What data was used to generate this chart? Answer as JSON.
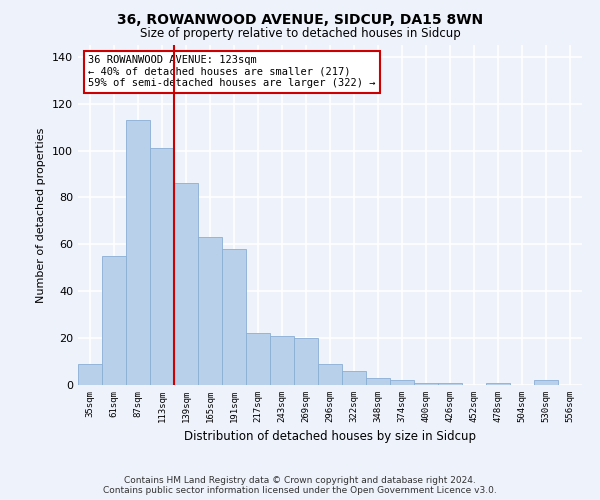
{
  "title": "36, ROWANWOOD AVENUE, SIDCUP, DA15 8WN",
  "subtitle": "Size of property relative to detached houses in Sidcup",
  "xlabel": "Distribution of detached houses by size in Sidcup",
  "ylabel": "Number of detached properties",
  "footer_line1": "Contains HM Land Registry data © Crown copyright and database right 2024.",
  "footer_line2": "Contains public sector information licensed under the Open Government Licence v3.0.",
  "bar_labels": [
    "35sqm",
    "61sqm",
    "87sqm",
    "113sqm",
    "139sqm",
    "165sqm",
    "191sqm",
    "217sqm",
    "243sqm",
    "269sqm",
    "296sqm",
    "322sqm",
    "348sqm",
    "374sqm",
    "400sqm",
    "426sqm",
    "452sqm",
    "478sqm",
    "504sqm",
    "530sqm",
    "556sqm"
  ],
  "bar_heights": [
    9,
    55,
    113,
    101,
    86,
    63,
    58,
    22,
    21,
    20,
    9,
    6,
    3,
    2,
    1,
    1,
    0,
    1,
    0,
    2,
    0
  ],
  "bar_color": "#b8d0ea",
  "bar_edgecolor": "#8aaed4",
  "vline_color": "#cc0000",
  "annotation_text": "36 ROWANWOOD AVENUE: 123sqm\n← 40% of detached houses are smaller (217)\n59% of semi-detached houses are larger (322) →",
  "annotation_box_color": "#ffffff",
  "annotation_box_edgecolor": "#cc0000",
  "ylim": [
    0,
    145
  ],
  "bg_color": "#eef2fb",
  "plot_bg_color": "#eef2fb",
  "grid_color": "#ffffff",
  "vline_index": 3.5
}
